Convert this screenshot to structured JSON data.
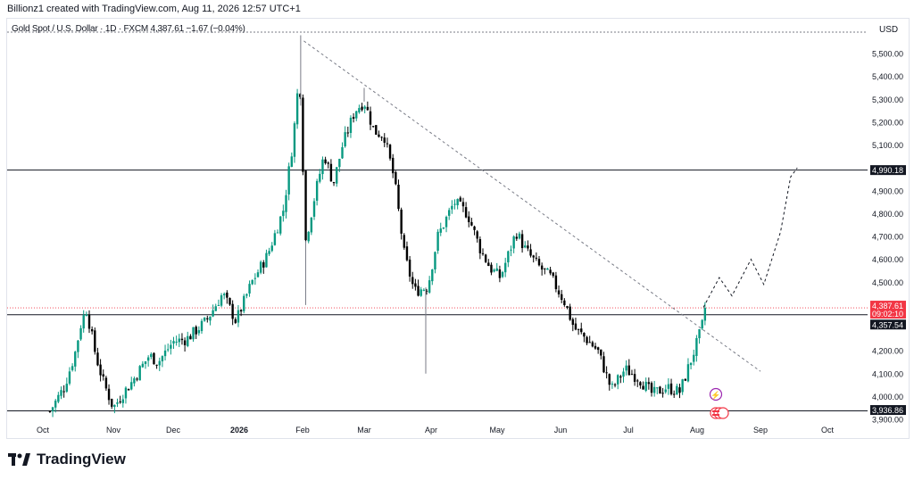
{
  "header": {
    "attribution": "Billionz1 created with TradingView.com, Aug 11, 2026 12:57 UTC+1"
  },
  "legend": {
    "symbol_line": "Gold Spot / U.S. Dollar · 1D · FXCM  4,387.61  −1.67 (−0.04%)"
  },
  "price_axis": {
    "currency": "USD",
    "ticks": [
      "5,500.00",
      "5,400.00",
      "5,300.00",
      "5,200.00",
      "5,100.00",
      "4,900.00",
      "4,800.00",
      "4,700.00",
      "4,600.00",
      "4,500.00",
      "4,200.00",
      "4,100.00",
      "4,000.00",
      "3,900.00"
    ],
    "tick_values": [
      5500,
      5400,
      5300,
      5200,
      5100,
      4900,
      4800,
      4700,
      4600,
      4500,
      4200,
      4100,
      4000,
      3900
    ],
    "badges": {
      "resistance": "4,990.18",
      "last_price": "4,387.61",
      "countdown": "09:02:10",
      "support_upper": "4,357.54",
      "support_lower": "3,936.86"
    }
  },
  "time_axis": {
    "labels": [
      "Oct",
      "Nov",
      "Dec",
      "2026",
      "Feb",
      "Mar",
      "Apr",
      "May",
      "Jun",
      "Jul",
      "Aug",
      "Sep",
      "Oct"
    ]
  },
  "footer": {
    "brand": "TradingView",
    "logo_icon": "tradingview-logo-icon"
  },
  "colors": {
    "up": "#089981",
    "down": "#000000",
    "last_price_badge": "#f23645",
    "level_badge": "#131722"
  },
  "chart_data": {
    "type": "candlestick",
    "symbol": "Gold Spot / U.S. Dollar",
    "interval": "1D",
    "exchange": "FXCM",
    "last": 4387.61,
    "change": -1.67,
    "change_pct": -0.04,
    "ylim": [
      3880,
      5600
    ],
    "horizontal_levels": [
      4990.18,
      4357.54,
      3936.86
    ],
    "last_price_level": 4387.61,
    "month_ticks": [
      {
        "label": "Oct",
        "t": 0
      },
      {
        "label": "Nov",
        "t": 1
      },
      {
        "label": "Dec",
        "t": 2
      },
      {
        "label": "2026",
        "t": 3
      },
      {
        "label": "Feb",
        "t": 4
      },
      {
        "label": "Mar",
        "t": 5
      },
      {
        "label": "Apr",
        "t": 6
      },
      {
        "label": "May",
        "t": 7
      },
      {
        "label": "Jun",
        "t": 8
      },
      {
        "label": "Jul",
        "t": 9
      },
      {
        "label": "Aug",
        "t": 10
      },
      {
        "label": "Sep",
        "t": 11
      },
      {
        "label": "Oct",
        "t": 12
      }
    ],
    "waypoints": [
      [
        0.1,
        3935
      ],
      [
        0.3,
        4040
      ],
      [
        0.45,
        4180
      ],
      [
        0.55,
        4330
      ],
      [
        0.62,
        4380
      ],
      [
        0.75,
        4180
      ],
      [
        0.85,
        4070
      ],
      [
        1.0,
        3950
      ],
      [
        1.15,
        4010
      ],
      [
        1.3,
        4060
      ],
      [
        1.45,
        4120
      ],
      [
        1.6,
        4180
      ],
      [
        1.75,
        4150
      ],
      [
        2.0,
        4240
      ],
      [
        2.2,
        4250
      ],
      [
        2.5,
        4330
      ],
      [
        2.75,
        4450
      ],
      [
        2.95,
        4330
      ],
      [
        3.2,
        4500
      ],
      [
        3.45,
        4620
      ],
      [
        3.7,
        4820
      ],
      [
        3.85,
        5120
      ],
      [
        3.95,
        5420
      ],
      [
        4.05,
        4680
      ],
      [
        4.2,
        4880
      ],
      [
        4.35,
        5060
      ],
      [
        4.5,
        4930
      ],
      [
        4.65,
        5100
      ],
      [
        4.85,
        5250
      ],
      [
        5.0,
        5290
      ],
      [
        5.15,
        5160
      ],
      [
        5.3,
        5140
      ],
      [
        5.45,
        4950
      ],
      [
        5.6,
        4620
      ],
      [
        5.75,
        4460
      ],
      [
        5.95,
        4480
      ],
      [
        6.1,
        4700
      ],
      [
        6.35,
        4850
      ],
      [
        6.55,
        4800
      ],
      [
        6.75,
        4640
      ],
      [
        6.9,
        4560
      ],
      [
        7.05,
        4520
      ],
      [
        7.3,
        4720
      ],
      [
        7.45,
        4640
      ],
      [
        7.65,
        4570
      ],
      [
        7.85,
        4520
      ],
      [
        8.05,
        4420
      ],
      [
        8.2,
        4300
      ],
      [
        8.35,
        4260
      ],
      [
        8.55,
        4200
      ],
      [
        8.75,
        4030
      ],
      [
        8.95,
        4120
      ],
      [
        9.15,
        4080
      ],
      [
        9.35,
        4010
      ],
      [
        9.55,
        4040
      ],
      [
        9.75,
        4020
      ],
      [
        9.9,
        4150
      ],
      [
        10.05,
        4280
      ],
      [
        10.15,
        4385
      ]
    ],
    "spikes": [
      {
        "t": 3.97,
        "high": 5580
      },
      {
        "t": 4.05,
        "low": 4400
      },
      {
        "t": 5.92,
        "low": 4100
      },
      {
        "t": 5.0,
        "high": 5350
      }
    ],
    "trendline": [
      [
        4.02,
        5555
      ],
      [
        11.0,
        4110
      ]
    ],
    "projection_path": [
      [
        10.1,
        4390
      ],
      [
        10.35,
        4520
      ],
      [
        10.55,
        4440
      ],
      [
        10.85,
        4600
      ],
      [
        11.05,
        4490
      ],
      [
        11.3,
        4720
      ],
      [
        11.45,
        4960
      ],
      [
        11.55,
        5000
      ]
    ]
  }
}
